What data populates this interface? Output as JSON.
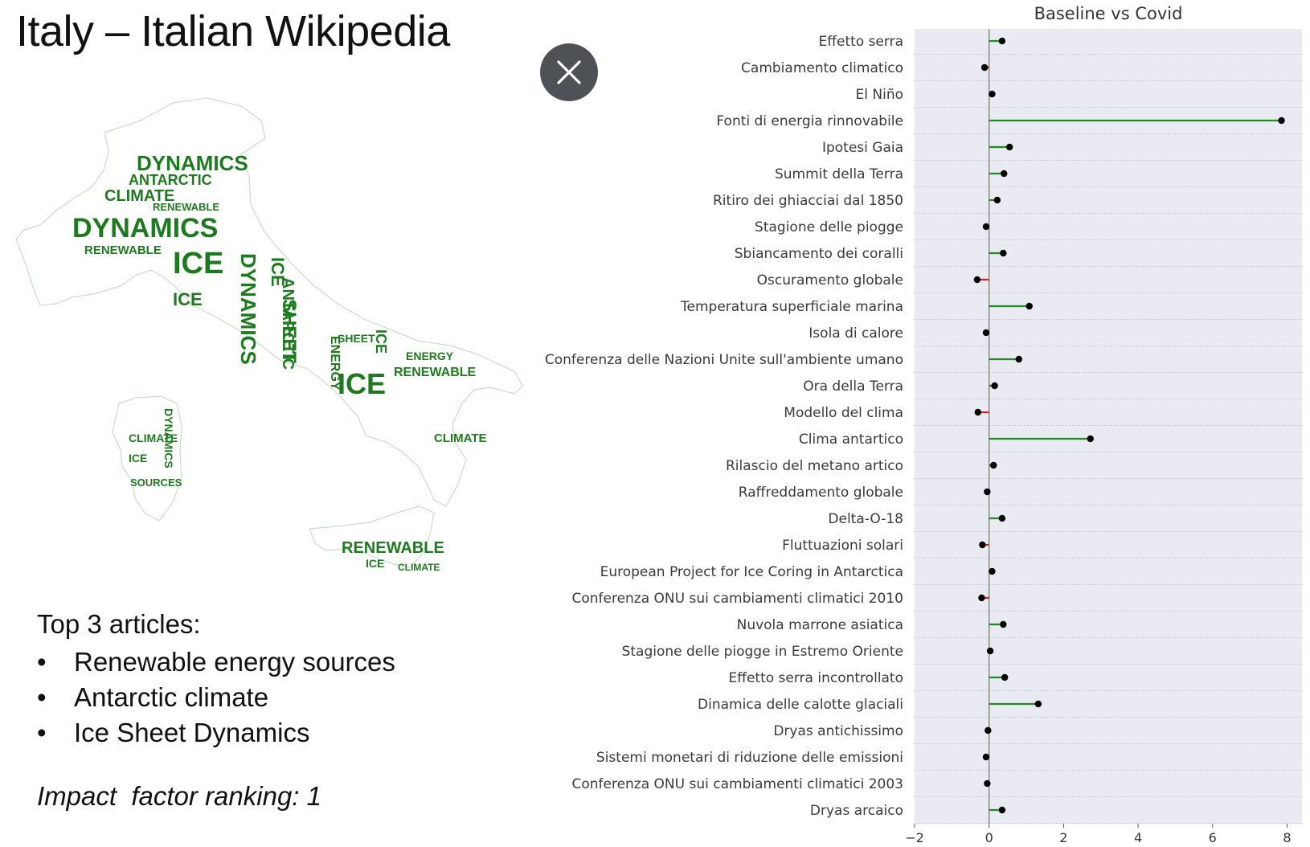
{
  "slide": {
    "title": "Italy – Italian Wikipedia",
    "top_heading": "Top 3 articles:",
    "top_articles": [
      "Renewable energy sources",
      "Antarctic climate",
      "Ice Sheet Dynamics"
    ],
    "bullet_char": "•",
    "impact_text": "Impact  factor ranking: 1"
  },
  "close_button": {
    "icon": "close-icon"
  },
  "wordcloud": {
    "words": [
      "DYNAMICS",
      "ICE",
      "CLIMATE",
      "ANTARCTIC",
      "RENEWABLE",
      "SHEET",
      "ENERGY",
      "SOURCES"
    ],
    "color": "#1e7a1e"
  },
  "chart_data": {
    "type": "lollipop",
    "title": "Baseline vs Covid",
    "xlim": [
      -2,
      8.4
    ],
    "xticks": [
      -2,
      0,
      2,
      4,
      6,
      8
    ],
    "xtick_labels": [
      "−2",
      "0",
      "2",
      "4",
      "6",
      "8"
    ],
    "grid": "horizontal",
    "positive_color": "#1e8c1e",
    "negative_color": "#e02020",
    "marker_color": "#000000",
    "background": "#e9eaf2",
    "categories": [
      "Effetto serra",
      "Cambiamento climatico",
      "El Niño",
      "Fonti di energia rinnovabile",
      "Ipotesi Gaia",
      "Summit della Terra",
      "Ritiro dei ghiacciai dal 1850",
      "Stagione delle piogge",
      "Sbiancamento dei coralli",
      "Oscuramento globale",
      "Temperatura superficiale marina",
      "Isola di calore",
      "Conferenza delle Nazioni Unite sull'ambiente umano",
      "Ora della Terra",
      "Modello del clima",
      "Clima antartico",
      "Rilascio del metano artico",
      "Raffreddamento globale",
      "Delta-O-18",
      "Fluttuazioni solari",
      "European Project for Ice Coring in Antarctica",
      "Conferenza ONU sui cambiamenti climatici 2010",
      "Nuvola marrone asiatica",
      "Stagione delle piogge in Estremo Oriente",
      "Effetto serra incontrollato",
      "Dinamica delle calotte glaciali",
      "Dryas antichissimo",
      "Sistemi monetari di riduzione delle emissioni",
      "Conferenza ONU sui cambiamenti climatici 2003",
      "Dryas arcaico"
    ],
    "values": [
      0.35,
      -0.12,
      0.08,
      7.85,
      0.55,
      0.4,
      0.22,
      -0.08,
      0.38,
      -0.32,
      1.08,
      -0.08,
      0.8,
      0.15,
      -0.3,
      2.72,
      0.12,
      -0.05,
      0.35,
      -0.18,
      0.08,
      -0.2,
      0.38,
      0.03,
      0.42,
      1.32,
      -0.03,
      -0.08,
      -0.05,
      0.35
    ]
  }
}
